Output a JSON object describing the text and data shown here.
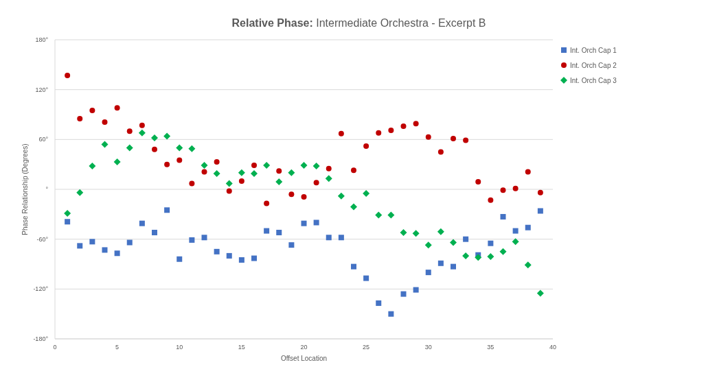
{
  "chart_data": {
    "type": "scatter",
    "title": "Relative Phase: Intermediate Orchestra - Excerpt B",
    "xlabel": "Offset Location",
    "ylabel": "Phase Relationship (Degrees)",
    "x": [
      1,
      2,
      3,
      4,
      5,
      6,
      7,
      8,
      9,
      10,
      11,
      12,
      13,
      14,
      15,
      16,
      17,
      18,
      19,
      20,
      21,
      22,
      23,
      24,
      25,
      26,
      27,
      28,
      29,
      30,
      31,
      32,
      33,
      34,
      35,
      36,
      37,
      38,
      39
    ],
    "series": [
      {
        "name": "Int. Orch Cap 1",
        "color": "#4472c4",
        "marker": "square",
        "values": [
          -39,
          -68,
          -63,
          -73,
          -77,
          -64,
          -41,
          -52,
          -25,
          -84,
          -61,
          -58,
          -75,
          -80,
          -85,
          -83,
          -50,
          -52,
          -67,
          -41,
          -40,
          -58,
          -58,
          -93,
          -107,
          -137,
          -150,
          -126,
          -121,
          -100,
          -89,
          -93,
          -60,
          -79,
          -65,
          -33,
          -50,
          -46,
          -26
        ]
      },
      {
        "name": "Int. Orch Cap 2",
        "color": "#c00000",
        "marker": "circle",
        "values": [
          137,
          85,
          95,
          81,
          98,
          70,
          77,
          48,
          30,
          35,
          7,
          21,
          33,
          -2,
          10,
          29,
          -17,
          22,
          -6,
          -9,
          8,
          25,
          67,
          23,
          52,
          68,
          71,
          76,
          79,
          63,
          45,
          61,
          59,
          9,
          -13,
          -1,
          1,
          21,
          -4
        ]
      },
      {
        "name": "Int. Orch Cap 3",
        "color": "#00b050",
        "marker": "diamond",
        "values": [
          -29,
          -4,
          28,
          54,
          33,
          50,
          68,
          62,
          64,
          50,
          49,
          29,
          19,
          7,
          20,
          19,
          29,
          9,
          20,
          29,
          28,
          13,
          -8,
          -21,
          -5,
          -31,
          -31,
          -52,
          -53,
          -67,
          -51,
          -64,
          -80,
          -82,
          -81,
          -75,
          -63,
          -91,
          -125
        ]
      }
    ],
    "xlim": [
      0,
      40
    ],
    "xticks": [
      0,
      5,
      10,
      15,
      20,
      25,
      30,
      35,
      40
    ],
    "ylim": [
      -180,
      180
    ],
    "yticks": [
      {
        "value": -180,
        "label": "-180°"
      },
      {
        "value": -120,
        "label": "-120°"
      },
      {
        "value": -60,
        "label": "-60°"
      },
      {
        "value": 0,
        "label": "°"
      },
      {
        "value": 60,
        "label": "60°"
      },
      {
        "value": 120,
        "label": "120°"
      },
      {
        "value": 180,
        "label": "180°"
      }
    ],
    "grid": "y",
    "legend": "right"
  }
}
